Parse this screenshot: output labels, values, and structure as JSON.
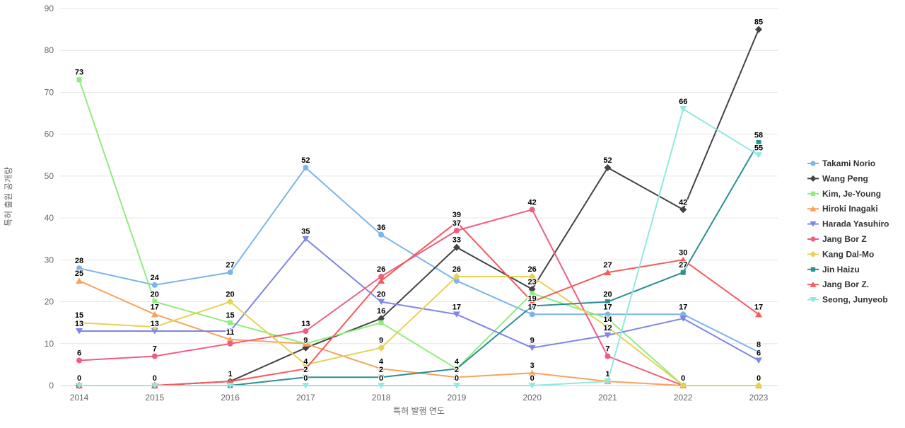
{
  "chart_data": {
    "type": "line",
    "title": "",
    "xlabel": "특허 발행 연도",
    "ylabel": "특허 출원 공개량",
    "x": [
      "2014",
      "2015",
      "2016",
      "2017",
      "2018",
      "2019",
      "2020",
      "2021",
      "2022",
      "2023"
    ],
    "ylim": [
      0,
      90
    ],
    "ytick_step": 10,
    "grid": true,
    "legend_position": "right",
    "colors": {
      "grid": "#e6e6e6",
      "axis_line": "#ccd6eb",
      "tick_text": "#666666",
      "legend_text": "#333333",
      "label_text": "#000000"
    },
    "series": [
      {
        "name": "Takami Norio",
        "color": "#7cb5ec",
        "marker": "circle",
        "values": [
          28,
          24,
          27,
          52,
          36,
          25,
          17,
          17,
          17,
          8
        ],
        "labels": [
          28,
          24,
          27,
          52,
          36,
          null,
          17,
          17,
          17,
          8
        ]
      },
      {
        "name": "Wang Peng",
        "color": "#434348",
        "marker": "diamond",
        "values": [
          0,
          0,
          1,
          9,
          16,
          33,
          23,
          52,
          42,
          85
        ],
        "labels": [
          null,
          null,
          1,
          9,
          16,
          33,
          23,
          52,
          42,
          85
        ]
      },
      {
        "name": "Kim, Je-Young",
        "color": "#90ed7d",
        "marker": "square",
        "values": [
          73,
          20,
          15,
          10,
          15,
          4,
          22,
          16,
          0,
          null
        ],
        "labels": [
          73,
          20,
          15,
          null,
          null,
          4,
          null,
          null,
          null,
          null
        ]
      },
      {
        "name": "Hiroki Inagaki",
        "color": "#f7a35c",
        "marker": "triangle",
        "values": [
          25,
          17,
          11,
          10,
          4,
          2,
          3,
          1,
          0,
          0
        ],
        "labels": [
          25,
          17,
          11,
          null,
          4,
          2,
          3,
          null,
          null,
          null
        ]
      },
      {
        "name": "Harada Yasuhiro",
        "color": "#8085e9",
        "marker": "triangle-down",
        "values": [
          13,
          13,
          13,
          35,
          20,
          17,
          9,
          12,
          16,
          6
        ],
        "labels": [
          13,
          13,
          null,
          35,
          20,
          17,
          9,
          12,
          null,
          6
        ]
      },
      {
        "name": "Jang Bor Z",
        "color": "#f15c80",
        "marker": "circle",
        "values": [
          6,
          7,
          10,
          13,
          26,
          37,
          42,
          7,
          0,
          null
        ],
        "labels": [
          6,
          7,
          null,
          13,
          26,
          37,
          42,
          7,
          null,
          null
        ]
      },
      {
        "name": "Kang Dal-Mo",
        "color": "#e4d354",
        "marker": "diamond",
        "values": [
          15,
          14,
          20,
          5,
          9,
          26,
          26,
          14,
          0,
          0
        ],
        "labels": [
          15,
          null,
          20,
          null,
          9,
          26,
          26,
          14,
          0,
          0
        ]
      },
      {
        "name": "Jin Haizu",
        "color": "#2b908f",
        "marker": "square",
        "values": [
          0,
          0,
          0,
          2,
          2,
          4,
          19,
          20,
          27,
          58
        ],
        "labels": [
          null,
          null,
          null,
          2,
          2,
          null,
          19,
          20,
          27,
          58
        ]
      },
      {
        "name": "Jang Bor Z.",
        "color": "#f45b5b",
        "marker": "triangle",
        "values": [
          0,
          0,
          1,
          4,
          25,
          39,
          20,
          27,
          30,
          17
        ],
        "labels": [
          null,
          null,
          null,
          4,
          null,
          39,
          null,
          27,
          30,
          17
        ]
      },
      {
        "name": "Seong, Junyeob",
        "color": "#91e8e1",
        "marker": "triangle-down",
        "values": [
          0,
          0,
          0,
          0,
          0,
          0,
          0,
          1,
          66,
          55
        ],
        "labels": [
          0,
          0,
          null,
          0,
          0,
          0,
          0,
          1,
          66,
          55
        ]
      }
    ]
  }
}
